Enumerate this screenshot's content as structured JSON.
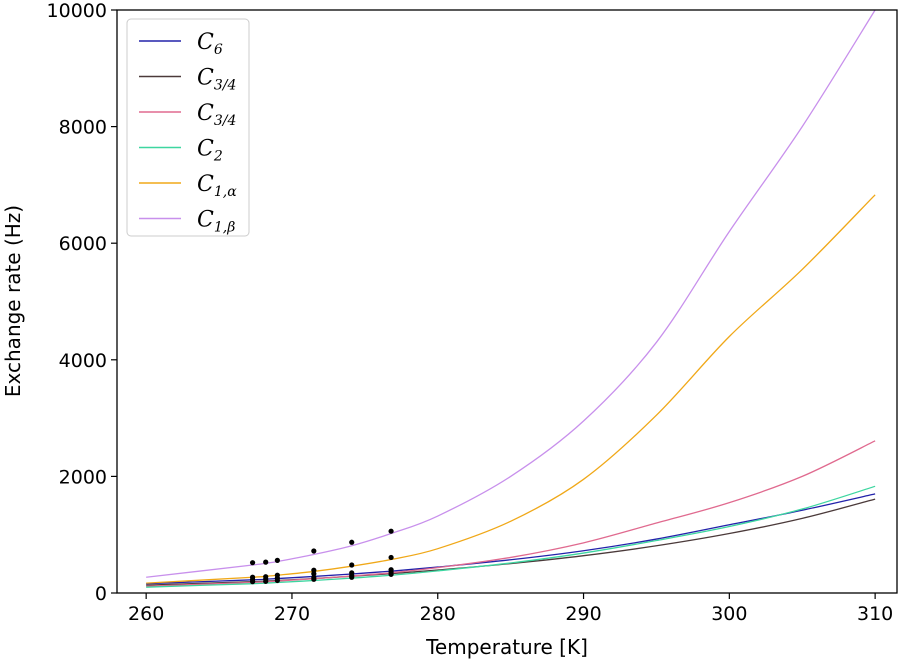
{
  "chart_data": {
    "type": "line",
    "title": "",
    "xlabel": "Temperature [K]",
    "ylabel": "Exchange rate (Hz)",
    "xlim": [
      258,
      311.5
    ],
    "ylim": [
      0,
      10000
    ],
    "x_ticks": [
      260,
      270,
      280,
      290,
      300,
      310
    ],
    "y_ticks": [
      0,
      2000,
      4000,
      6000,
      8000,
      10000
    ],
    "grid": false,
    "legend_position": "top-left",
    "curve_x": [
      260,
      267.3,
      268.2,
      269,
      271.5,
      274.1,
      276.8,
      280,
      285,
      290,
      295,
      300,
      305,
      310
    ],
    "series": [
      {
        "name": "C6",
        "base": "C",
        "sub": "6",
        "color": "#2222aa",
        "values": [
          160,
          226,
          237,
          248,
          284,
          326,
          375,
          445,
          570,
          725,
          925,
          1170,
          1420,
          1700
        ]
      },
      {
        "name": "C3/4",
        "base": "C",
        "sub": "3/4",
        "color": "#4b3a3a",
        "values": [
          135,
          195,
          205,
          215,
          248,
          287,
          332,
          395,
          505,
          640,
          810,
          1020,
          1280,
          1610
        ]
      },
      {
        "name": "C3/4",
        "base": "C",
        "sub": "3/4",
        "color": "#e06a8f",
        "values": [
          115,
          182,
          193,
          205,
          245,
          292,
          348,
          435,
          610,
          860,
          1200,
          1550,
          2000,
          2610
        ]
      },
      {
        "name": "C2",
        "base": "C",
        "sub": "2",
        "color": "#3dd6a0",
        "values": [
          100,
          160,
          170,
          180,
          215,
          255,
          305,
          380,
          515,
          685,
          900,
          1140,
          1440,
          1830
        ]
      },
      {
        "name": "C1,α",
        "base": "C",
        "sub": "1,α",
        "color": "#f0a818",
        "values": [
          170,
          270,
          288,
          305,
          370,
          460,
          575,
          760,
          1230,
          1950,
          3050,
          4400,
          5550,
          6830
        ]
      },
      {
        "name": "C1,β",
        "base": "C",
        "sub": "1,β",
        "color": "#c890ec",
        "values": [
          270,
          480,
          510,
          540,
          660,
          810,
          1020,
          1320,
          2000,
          2950,
          4300,
          6200,
          8000,
          10000
        ]
      }
    ],
    "markers": [
      {
        "x": 267.3,
        "y": 520
      },
      {
        "x": 267.3,
        "y": 270
      },
      {
        "x": 267.3,
        "y": 230
      },
      {
        "x": 267.3,
        "y": 195
      },
      {
        "x": 268.2,
        "y": 530
      },
      {
        "x": 268.2,
        "y": 280
      },
      {
        "x": 268.2,
        "y": 240
      },
      {
        "x": 268.2,
        "y": 200
      },
      {
        "x": 269.0,
        "y": 560
      },
      {
        "x": 269.0,
        "y": 305
      },
      {
        "x": 269.0,
        "y": 255
      },
      {
        "x": 269.0,
        "y": 215
      },
      {
        "x": 271.5,
        "y": 720
      },
      {
        "x": 271.5,
        "y": 390
      },
      {
        "x": 271.5,
        "y": 330
      },
      {
        "x": 271.5,
        "y": 265
      },
      {
        "x": 271.5,
        "y": 235
      },
      {
        "x": 274.1,
        "y": 870
      },
      {
        "x": 274.1,
        "y": 480
      },
      {
        "x": 274.1,
        "y": 345
      },
      {
        "x": 274.1,
        "y": 300
      },
      {
        "x": 274.1,
        "y": 270
      },
      {
        "x": 276.8,
        "y": 1060
      },
      {
        "x": 276.8,
        "y": 610
      },
      {
        "x": 276.8,
        "y": 400
      },
      {
        "x": 276.8,
        "y": 360
      },
      {
        "x": 276.8,
        "y": 320
      }
    ],
    "marker_color": "#000000"
  }
}
